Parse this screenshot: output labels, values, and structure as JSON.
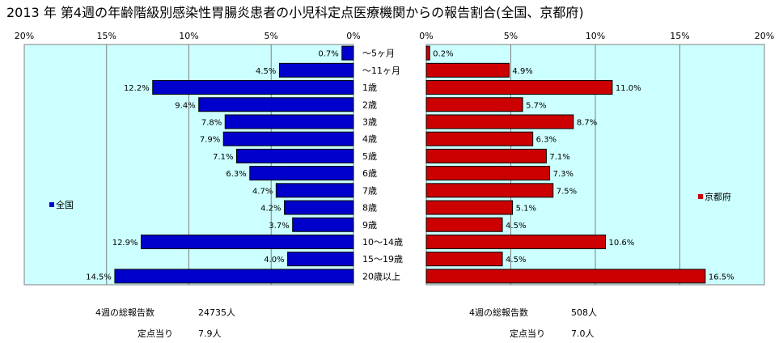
{
  "title": "2013 年 第4週の年齢階級別感染性胃腸炎患者の小児科定点医療機関からの報告割合(全国、京都府)",
  "chart_data": {
    "type": "bar",
    "orientation": "horizontal",
    "layout": "butterfly",
    "categories": [
      "～5ヶ月",
      "～11ヶ月",
      "1歳",
      "2歳",
      "3歳",
      "4歳",
      "5歳",
      "6歳",
      "7歳",
      "8歳",
      "9歳",
      "10～14歳",
      "15～19歳",
      "20歳以上"
    ],
    "series": [
      {
        "name": "全国",
        "color": "#0000cc",
        "values": [
          0.7,
          4.5,
          12.2,
          9.4,
          7.8,
          7.9,
          7.1,
          6.3,
          4.7,
          4.2,
          3.7,
          12.9,
          4.0,
          14.5
        ]
      },
      {
        "name": "京都府",
        "color": "#cc0000",
        "values": [
          0.2,
          4.9,
          11.0,
          5.7,
          8.7,
          6.3,
          7.1,
          7.3,
          7.5,
          5.1,
          4.5,
          10.6,
          4.5,
          16.5
        ]
      }
    ],
    "data_labels": {
      "全国": [
        "0.7%",
        "4.5%",
        "12.2%",
        "9.4%",
        "7.8%",
        "7.9%",
        "7.1%",
        "6.3%",
        "4.7%",
        "4.2%",
        "3.7%",
        "12.9%",
        "4.0%",
        "14.5%"
      ],
      "京都府": [
        "0.2%",
        "4.9%",
        "11.0%",
        "5.7%",
        "8.7%",
        "6.3%",
        "7.1%",
        "7.3%",
        "7.5%",
        "5.1%",
        "4.5%",
        "10.6%",
        "4.5%",
        "16.5%"
      ]
    },
    "left_axis_ticks": [
      "20%",
      "15%",
      "10%",
      "5%",
      "0%"
    ],
    "right_axis_ticks": [
      "0%",
      "5%",
      "10%",
      "15%",
      "20%"
    ],
    "xlim": [
      0,
      20
    ],
    "unit": "%",
    "grid": true,
    "plot_background": "#ccffff",
    "legend_placement": "inside-left / inside-right"
  },
  "summary": {
    "national": {
      "total_label": "4週の総報告数",
      "total_value": "24735人",
      "per_site_label": "定点当り",
      "per_site_value": "7.9人"
    },
    "kyoto": {
      "total_label": "4週の総報告数",
      "total_value": "508人",
      "per_site_label": "定点当り",
      "per_site_value": "7.0人"
    }
  }
}
